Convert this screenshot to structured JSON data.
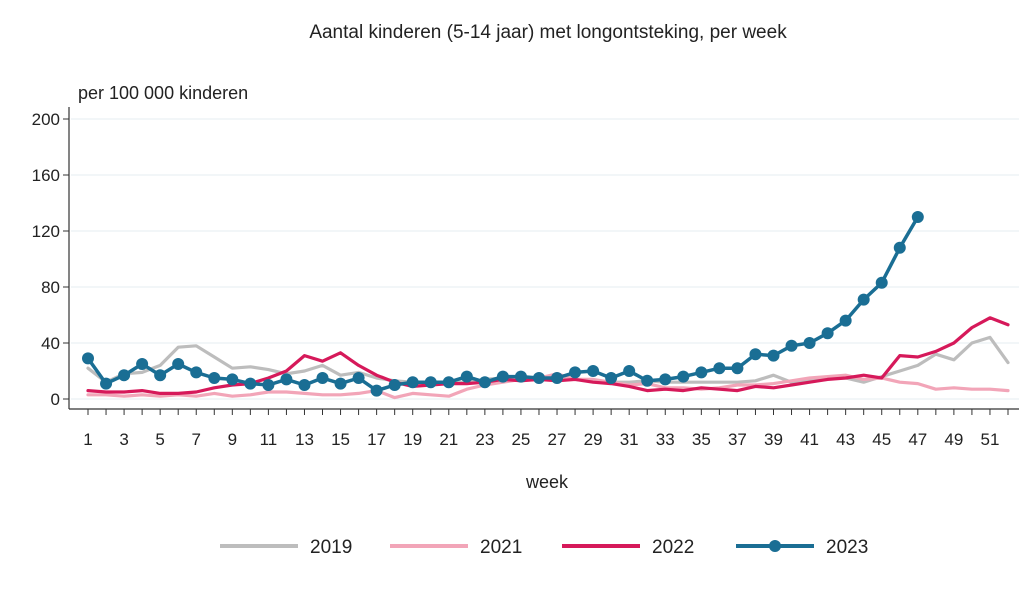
{
  "chart_data": {
    "type": "line",
    "title": "Aantal kinderen (5-14 jaar) met longontsteking, per week",
    "ylabel": "per 100 000 kinderen",
    "xlabel": "week",
    "ylim": [
      0,
      200
    ],
    "xlim": [
      1,
      52
    ],
    "yticks": [
      0,
      40,
      80,
      120,
      160,
      200
    ],
    "xticks": [
      1,
      3,
      5,
      7,
      9,
      11,
      13,
      15,
      17,
      19,
      21,
      23,
      25,
      27,
      29,
      31,
      33,
      35,
      37,
      39,
      41,
      43,
      45,
      47,
      49,
      51
    ],
    "grid": true,
    "legend_position": "bottom",
    "series": [
      {
        "name": "2019",
        "color": "#bdbdbd",
        "markers": false,
        "x": [
          1,
          2,
          3,
          4,
          5,
          6,
          7,
          8,
          9,
          10,
          11,
          12,
          13,
          14,
          15,
          16,
          17,
          18,
          19,
          20,
          21,
          22,
          23,
          24,
          25,
          26,
          27,
          28,
          29,
          30,
          31,
          32,
          33,
          34,
          35,
          36,
          37,
          38,
          39,
          40,
          41,
          42,
          43,
          44,
          45,
          46,
          47,
          48,
          49,
          50,
          51,
          52
        ],
        "values": [
          22,
          12,
          18,
          19,
          24,
          37,
          38,
          30,
          22,
          23,
          21,
          18,
          20,
          24,
          17,
          19,
          15,
          13,
          12,
          11,
          12,
          12,
          14,
          15,
          14,
          15,
          14,
          14,
          13,
          12,
          12,
          13,
          12,
          12,
          12,
          12,
          12,
          13,
          17,
          12,
          14,
          15,
          15,
          12,
          16,
          20,
          24,
          32,
          28,
          40,
          44,
          26
        ]
      },
      {
        "name": "2021",
        "color": "#f2a5b8",
        "markers": false,
        "x": [
          1,
          2,
          3,
          4,
          5,
          6,
          7,
          8,
          9,
          10,
          11,
          12,
          13,
          14,
          15,
          16,
          17,
          18,
          19,
          20,
          21,
          22,
          23,
          24,
          25,
          26,
          27,
          28,
          29,
          30,
          31,
          32,
          33,
          34,
          35,
          36,
          37,
          38,
          39,
          40,
          41,
          42,
          43,
          44,
          45,
          46,
          47,
          48,
          49,
          50,
          51,
          52
        ],
        "values": [
          3,
          3,
          2,
          3,
          2,
          3,
          2,
          4,
          2,
          3,
          5,
          5,
          4,
          3,
          3,
          4,
          6,
          1,
          4,
          3,
          2,
          7,
          10,
          12,
          14,
          15,
          18,
          14,
          14,
          12,
          10,
          11,
          8,
          8,
          7,
          8,
          10,
          10,
          11,
          13,
          15,
          16,
          17,
          14,
          15,
          12,
          11,
          7,
          8,
          7,
          7,
          6
        ]
      },
      {
        "name": "2022",
        "color": "#d6195a",
        "markers": false,
        "x": [
          1,
          2,
          3,
          4,
          5,
          6,
          7,
          8,
          9,
          10,
          11,
          12,
          13,
          14,
          15,
          16,
          17,
          18,
          19,
          20,
          21,
          22,
          23,
          24,
          25,
          26,
          27,
          28,
          29,
          30,
          31,
          32,
          33,
          34,
          35,
          36,
          37,
          38,
          39,
          40,
          41,
          42,
          43,
          44,
          45,
          46,
          47,
          48,
          49,
          50,
          51,
          52
        ],
        "values": [
          6,
          5,
          5,
          6,
          4,
          4,
          5,
          8,
          10,
          11,
          15,
          20,
          31,
          27,
          33,
          24,
          17,
          12,
          9,
          10,
          11,
          11,
          12,
          14,
          13,
          14,
          13,
          14,
          12,
          11,
          9,
          6,
          7,
          6,
          8,
          7,
          6,
          9,
          8,
          10,
          12,
          14,
          15,
          17,
          15,
          31,
          30,
          34,
          40,
          51,
          58,
          53
        ]
      },
      {
        "name": "2023",
        "color": "#1a6e94",
        "markers": true,
        "x": [
          1,
          2,
          3,
          4,
          5,
          6,
          7,
          8,
          9,
          10,
          11,
          12,
          13,
          14,
          15,
          16,
          17,
          18,
          19,
          20,
          21,
          22,
          23,
          24,
          25,
          26,
          27,
          28,
          29,
          30,
          31,
          32,
          33,
          34,
          35,
          36,
          37,
          38,
          39,
          40,
          41,
          42,
          43,
          44,
          45,
          46,
          47
        ],
        "values": [
          29,
          11,
          17,
          25,
          17,
          25,
          19,
          15,
          14,
          11,
          10,
          14,
          10,
          15,
          11,
          15,
          6,
          10,
          12,
          12,
          12,
          16,
          12,
          16,
          16,
          15,
          15,
          19,
          20,
          15,
          20,
          13,
          14,
          16,
          19,
          22,
          22,
          32,
          31,
          38,
          40,
          47,
          56,
          71,
          83,
          108,
          130
        ]
      }
    ]
  }
}
